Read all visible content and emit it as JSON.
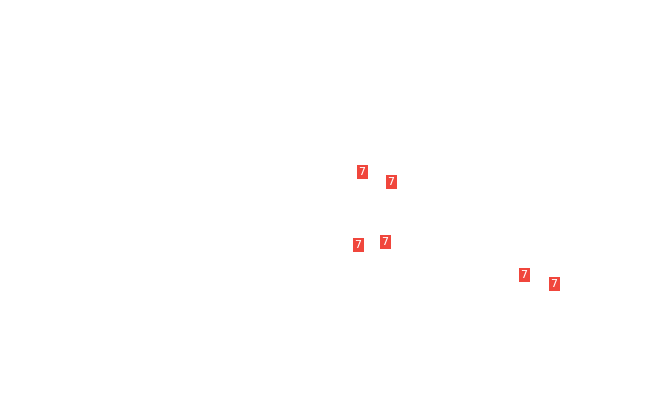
{
  "colors": {
    "background": "#ffffff",
    "marker": "#f0463c",
    "marker_text": "#ffffff"
  },
  "markers": [
    {
      "label": "7"
    },
    {
      "label": "7"
    },
    {
      "label": "7"
    },
    {
      "label": "7"
    },
    {
      "label": "7"
    },
    {
      "label": "7"
    }
  ]
}
